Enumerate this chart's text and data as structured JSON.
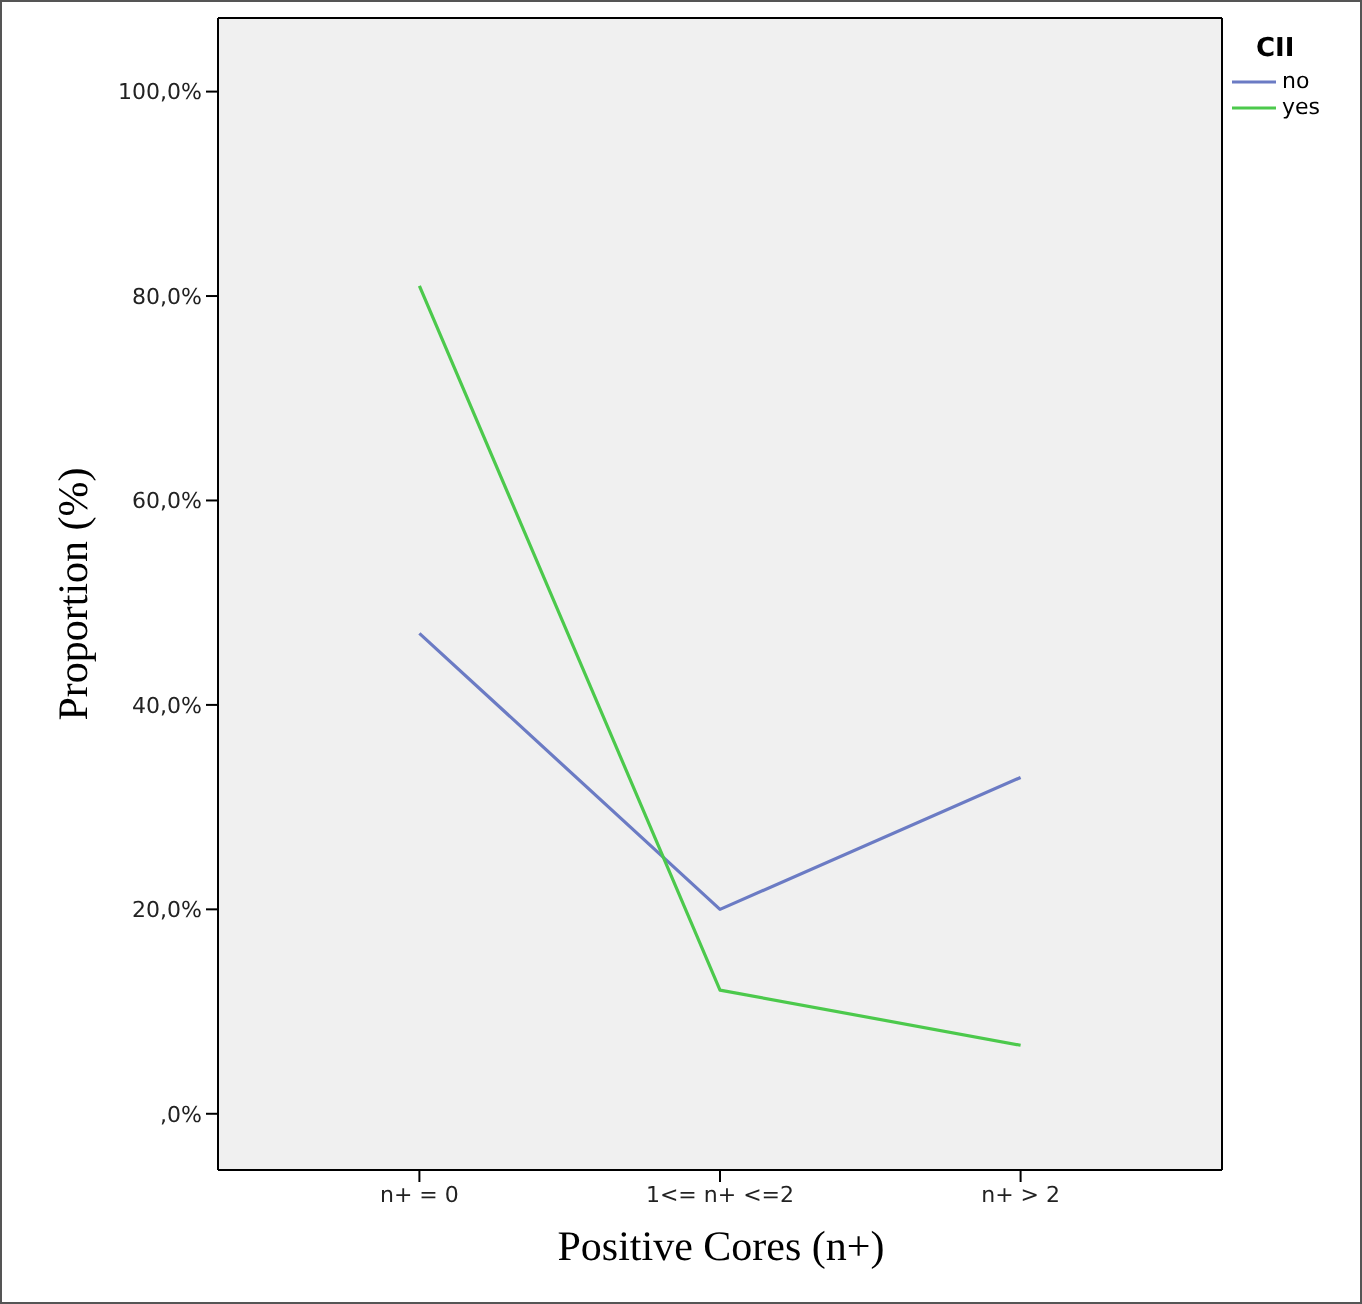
{
  "chart_data": {
    "type": "line",
    "xlabel": "Positive Cores (n+)",
    "ylabel": "Proportion (%)",
    "legend_title": "CII",
    "categories": [
      "n+ = 0",
      "1<= n+ <=2",
      "n+ > 2"
    ],
    "series": [
      {
        "name": "no",
        "color": "#6b7bc4",
        "values": [
          47.0,
          20.0,
          32.9
        ]
      },
      {
        "name": "yes",
        "color": "#4cc94c",
        "values": [
          81.0,
          12.1,
          6.7
        ]
      }
    ],
    "ylim": [
      -5.5,
      107.2
    ],
    "yticks": [
      {
        "value": 0,
        "label": ",0%"
      },
      {
        "value": 20,
        "label": "20,0%"
      },
      {
        "value": 40,
        "label": "40,0%"
      },
      {
        "value": 60,
        "label": "60,0%"
      },
      {
        "value": 80,
        "label": "80,0%"
      },
      {
        "value": 100,
        "label": "100,0%"
      }
    ],
    "grid": false,
    "legend": "top right",
    "marker": "none",
    "line_style": "solid"
  }
}
